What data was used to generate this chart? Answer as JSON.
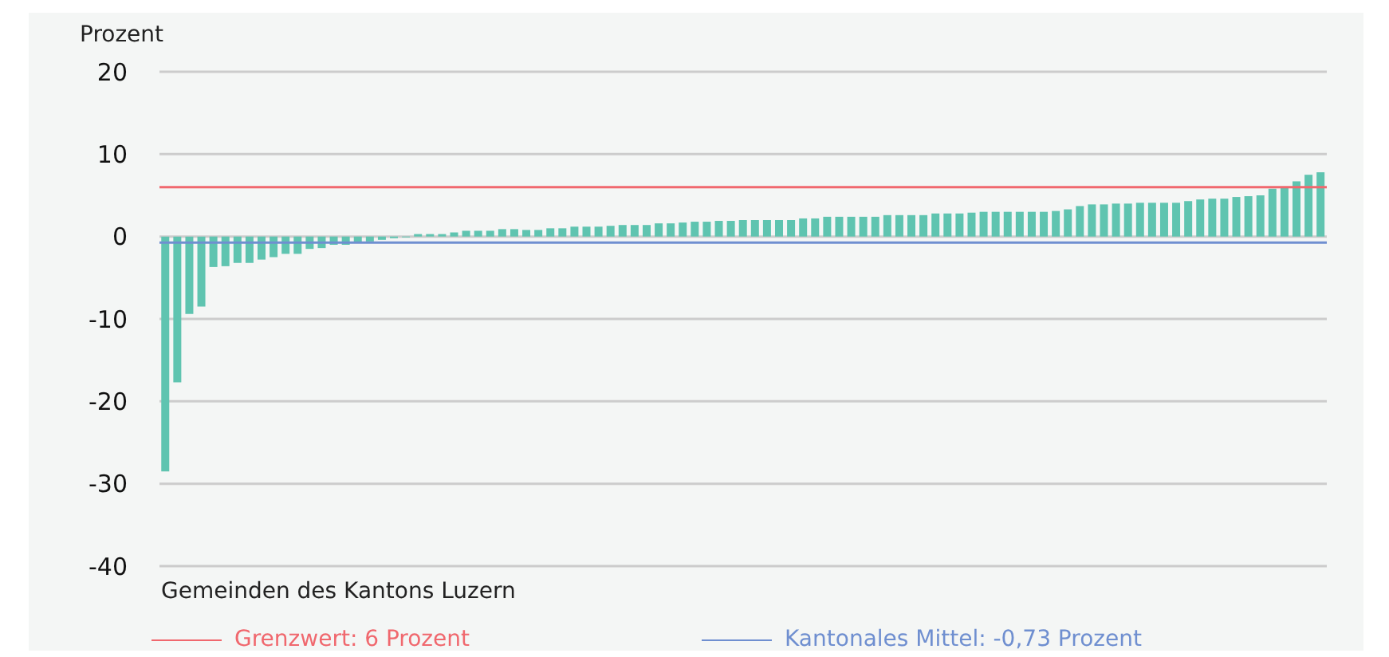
{
  "chart_data": {
    "type": "bar",
    "ylabel": "Prozent",
    "xlabel": "Gemeinden des Kantons Luzern",
    "categories": [
      null,
      null,
      null,
      null,
      null,
      null,
      null,
      null,
      null,
      null,
      null,
      null,
      null,
      null,
      null,
      null,
      null,
      null,
      null,
      null,
      null,
      null,
      null,
      null,
      null,
      null,
      null,
      null,
      null,
      null,
      null,
      null,
      null,
      null,
      null,
      null,
      null,
      null,
      null,
      null,
      null,
      null,
      null,
      null,
      null,
      null,
      null,
      null,
      null,
      null,
      null,
      null,
      null,
      null,
      null,
      null,
      null,
      null,
      null,
      null,
      null,
      null,
      null,
      null,
      null,
      null,
      null,
      null,
      null,
      null,
      null,
      null,
      null,
      null,
      null,
      null,
      null,
      null,
      null,
      null,
      null,
      null,
      null,
      null,
      null,
      null,
      null,
      null,
      null,
      null,
      null,
      null,
      null,
      null,
      null,
      null,
      null
    ],
    "values": [
      -28.5,
      -17.7,
      -9.4,
      -8.5,
      -3.7,
      -3.6,
      -3.2,
      -3.2,
      -2.8,
      -2.5,
      -2.1,
      -2.1,
      -1.5,
      -1.4,
      -1.0,
      -1.0,
      -0.7,
      -0.6,
      -0.4,
      -0.2,
      -0.1,
      0.3,
      0.3,
      0.3,
      0.5,
      0.7,
      0.7,
      0.7,
      0.9,
      0.9,
      0.8,
      0.8,
      1.0,
      1.0,
      1.2,
      1.2,
      1.2,
      1.3,
      1.4,
      1.4,
      1.4,
      1.6,
      1.6,
      1.7,
      1.8,
      1.8,
      1.9,
      1.9,
      2.0,
      2.0,
      2.0,
      2.0,
      2.0,
      2.2,
      2.2,
      2.4,
      2.4,
      2.4,
      2.4,
      2.4,
      2.6,
      2.6,
      2.6,
      2.6,
      2.8,
      2.8,
      2.8,
      2.9,
      3.0,
      3.0,
      3.0,
      3.0,
      3.0,
      3.0,
      3.1,
      3.3,
      3.7,
      3.9,
      3.9,
      4.0,
      4.0,
      4.1,
      4.1,
      4.1,
      4.1,
      4.3,
      4.5,
      4.6,
      4.6,
      4.8,
      4.9,
      5.0,
      5.8,
      6.0,
      6.7,
      7.5,
      7.8
    ],
    "color": "#5fc4b0",
    "legend": "bottom left",
    "ylim": [
      -40,
      20
    ],
    "yticks": [
      -40,
      -30,
      -20,
      -10,
      0,
      10,
      20
    ],
    "grid": "y",
    "ref_lines": [
      {
        "axis": "y",
        "value": 6,
        "label": "Grenzwert: 6 Prozent",
        "color": "#f0686e"
      },
      {
        "axis": "y",
        "value": -0.73,
        "label": "Kantonales Mittel: -0,73 Prozent",
        "color": "#6f8fd0"
      }
    ]
  }
}
